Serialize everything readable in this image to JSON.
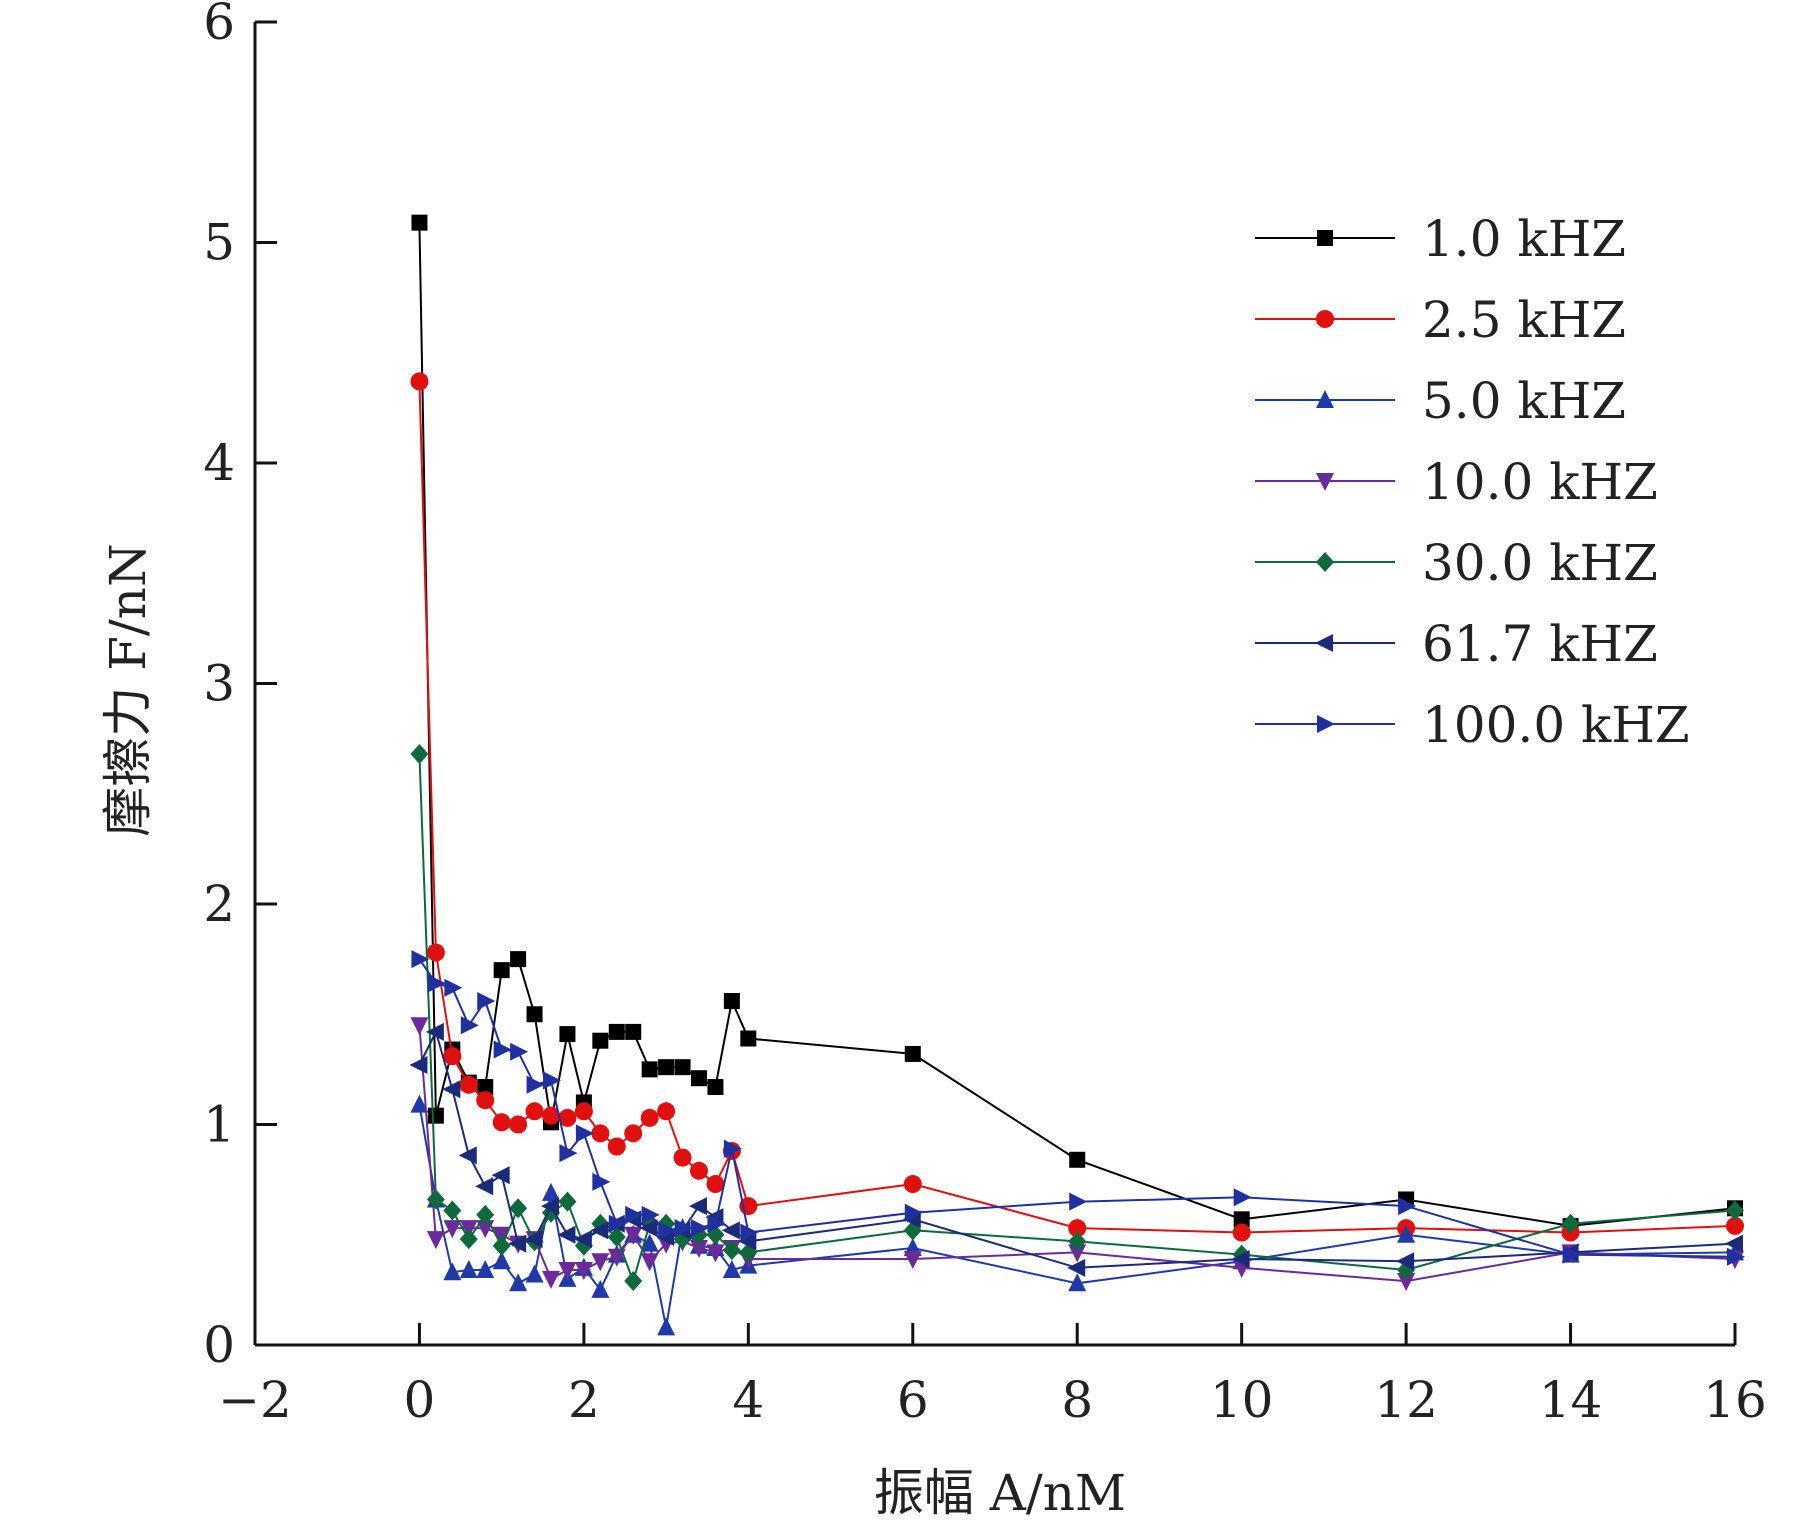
{
  "chart_data": {
    "type": "line",
    "xlabel": "振幅 A/nM",
    "ylabel": "摩擦力 F/nN",
    "xlim": [
      -2,
      16
    ],
    "ylim": [
      0,
      6
    ],
    "xticks": [
      -2,
      0,
      2,
      4,
      6,
      8,
      10,
      12,
      14,
      16
    ],
    "xtick_labels": [
      "−2",
      "0",
      "2",
      "4",
      "6",
      "8",
      "10",
      "12",
      "14",
      "16"
    ],
    "yticks": [
      0,
      1,
      2,
      3,
      4,
      5,
      6
    ],
    "ytick_labels": [
      "0",
      "1",
      "2",
      "3",
      "4",
      "5",
      "6"
    ],
    "grid": false,
    "legend_position": "top-right",
    "series": [
      {
        "name": "1.0 kHZ",
        "color": "#000000",
        "marker": "square",
        "points": [
          [
            0,
            5.09
          ],
          [
            0.2,
            1.04
          ],
          [
            0.4,
            1.34
          ],
          [
            0.6,
            1.19
          ],
          [
            0.8,
            1.17
          ],
          [
            1.0,
            1.7
          ],
          [
            1.2,
            1.75
          ],
          [
            1.4,
            1.5
          ],
          [
            1.6,
            1.01
          ],
          [
            1.8,
            1.41
          ],
          [
            2.0,
            1.1
          ],
          [
            2.2,
            1.38
          ],
          [
            2.4,
            1.42
          ],
          [
            2.6,
            1.42
          ],
          [
            2.8,
            1.25
          ],
          [
            3.0,
            1.26
          ],
          [
            3.2,
            1.26
          ],
          [
            3.4,
            1.21
          ],
          [
            3.6,
            1.17
          ],
          [
            3.8,
            1.56
          ],
          [
            4.0,
            1.39
          ],
          [
            6.0,
            1.32
          ],
          [
            8.0,
            0.84
          ],
          [
            10.0,
            0.57
          ],
          [
            12.0,
            0.66
          ],
          [
            14.0,
            0.54
          ],
          [
            16.0,
            0.62
          ]
        ]
      },
      {
        "name": "2.5 kHZ",
        "color": "#e01010",
        "marker": "circle",
        "points": [
          [
            0,
            4.37
          ],
          [
            0.2,
            1.78
          ],
          [
            0.4,
            1.31
          ],
          [
            0.6,
            1.18
          ],
          [
            0.8,
            1.11
          ],
          [
            1.0,
            1.01
          ],
          [
            1.2,
            1.0
          ],
          [
            1.4,
            1.06
          ],
          [
            1.6,
            1.04
          ],
          [
            1.8,
            1.03
          ],
          [
            2.0,
            1.06
          ],
          [
            2.2,
            0.96
          ],
          [
            2.4,
            0.9
          ],
          [
            2.6,
            0.96
          ],
          [
            2.8,
            1.03
          ],
          [
            3.0,
            1.06
          ],
          [
            3.2,
            0.85
          ],
          [
            3.4,
            0.79
          ],
          [
            3.6,
            0.73
          ],
          [
            3.8,
            0.88
          ],
          [
            4.0,
            0.63
          ],
          [
            6.0,
            0.73
          ],
          [
            8.0,
            0.53
          ],
          [
            10.0,
            0.51
          ],
          [
            12.0,
            0.53
          ],
          [
            14.0,
            0.51
          ],
          [
            16.0,
            0.54
          ]
        ]
      },
      {
        "name": "5.0 kHZ",
        "color": "#1f3aa8",
        "marker": "triangle-up",
        "points": [
          [
            0,
            1.09
          ],
          [
            0.2,
            0.66
          ],
          [
            0.4,
            0.33
          ],
          [
            0.6,
            0.34
          ],
          [
            0.8,
            0.34
          ],
          [
            1.0,
            0.38
          ],
          [
            1.2,
            0.28
          ],
          [
            1.4,
            0.32
          ],
          [
            1.6,
            0.69
          ],
          [
            1.8,
            0.3
          ],
          [
            2.0,
            0.35
          ],
          [
            2.2,
            0.25
          ],
          [
            2.4,
            0.41
          ],
          [
            2.6,
            0.5
          ],
          [
            2.8,
            0.46
          ],
          [
            3.0,
            0.08
          ],
          [
            3.2,
            0.53
          ],
          [
            3.4,
            0.45
          ],
          [
            3.6,
            0.44
          ],
          [
            3.8,
            0.34
          ],
          [
            4.0,
            0.36
          ],
          [
            6.0,
            0.44
          ],
          [
            8.0,
            0.28
          ],
          [
            10.0,
            0.38
          ],
          [
            12.0,
            0.5
          ],
          [
            14.0,
            0.41
          ],
          [
            16.0,
            0.42
          ]
        ]
      },
      {
        "name": "10.0 kHZ",
        "color": "#6a2a9a",
        "marker": "triangle-down",
        "points": [
          [
            0,
            1.45
          ],
          [
            0.2,
            0.48
          ],
          [
            0.4,
            0.53
          ],
          [
            0.6,
            0.53
          ],
          [
            0.8,
            0.53
          ],
          [
            1.0,
            0.5
          ],
          [
            1.2,
            0.46
          ],
          [
            1.4,
            0.48
          ],
          [
            1.6,
            0.3
          ],
          [
            1.8,
            0.34
          ],
          [
            2.0,
            0.34
          ],
          [
            2.2,
            0.38
          ],
          [
            2.4,
            0.4
          ],
          [
            2.6,
            0.5
          ],
          [
            2.8,
            0.38
          ],
          [
            3.0,
            0.46
          ],
          [
            3.2,
            0.47
          ],
          [
            3.4,
            0.44
          ],
          [
            3.6,
            0.42
          ],
          [
            3.8,
            0.44
          ],
          [
            4.0,
            0.39
          ],
          [
            6.0,
            0.39
          ],
          [
            8.0,
            0.42
          ],
          [
            10.0,
            0.35
          ],
          [
            12.0,
            0.29
          ],
          [
            14.0,
            0.42
          ],
          [
            16.0,
            0.39
          ]
        ]
      },
      {
        "name": "30.0 kHZ",
        "color": "#0e6a3a",
        "marker": "diamond",
        "points": [
          [
            0,
            2.68
          ],
          [
            0.2,
            0.66
          ],
          [
            0.4,
            0.61
          ],
          [
            0.6,
            0.48
          ],
          [
            0.8,
            0.59
          ],
          [
            1.0,
            0.45
          ],
          [
            1.2,
            0.62
          ],
          [
            1.4,
            0.47
          ],
          [
            1.6,
            0.6
          ],
          [
            1.8,
            0.65
          ],
          [
            2.0,
            0.45
          ],
          [
            2.2,
            0.55
          ],
          [
            2.4,
            0.49
          ],
          [
            2.6,
            0.29
          ],
          [
            2.8,
            0.55
          ],
          [
            3.0,
            0.55
          ],
          [
            3.2,
            0.48
          ],
          [
            3.4,
            0.5
          ],
          [
            3.6,
            0.5
          ],
          [
            3.8,
            0.43
          ],
          [
            4.0,
            0.42
          ],
          [
            6.0,
            0.52
          ],
          [
            8.0,
            0.47
          ],
          [
            10.0,
            0.41
          ],
          [
            12.0,
            0.34
          ],
          [
            14.0,
            0.55
          ],
          [
            16.0,
            0.61
          ]
        ]
      },
      {
        "name": "61.7 kHZ",
        "color": "#1c2a7a",
        "marker": "triangle-left",
        "points": [
          [
            0,
            1.27
          ],
          [
            0.2,
            1.42
          ],
          [
            0.4,
            1.16
          ],
          [
            0.6,
            0.86
          ],
          [
            0.8,
            0.72
          ],
          [
            1.0,
            0.77
          ],
          [
            1.2,
            0.46
          ],
          [
            1.4,
            0.48
          ],
          [
            1.6,
            0.63
          ],
          [
            1.8,
            0.5
          ],
          [
            2.0,
            0.48
          ],
          [
            2.2,
            0.52
          ],
          [
            2.4,
            0.55
          ],
          [
            2.6,
            0.57
          ],
          [
            2.8,
            0.53
          ],
          [
            3.0,
            0.49
          ],
          [
            3.2,
            0.52
          ],
          [
            3.4,
            0.63
          ],
          [
            3.6,
            0.58
          ],
          [
            3.8,
            0.52
          ],
          [
            4.0,
            0.47
          ],
          [
            6.0,
            0.57
          ],
          [
            8.0,
            0.35
          ],
          [
            10.0,
            0.39
          ],
          [
            12.0,
            0.38
          ],
          [
            14.0,
            0.42
          ],
          [
            16.0,
            0.46
          ]
        ]
      },
      {
        "name": "100.0 kHZ",
        "color": "#2030a0",
        "marker": "triangle-right",
        "points": [
          [
            0,
            1.75
          ],
          [
            0.2,
            1.64
          ],
          [
            0.4,
            1.62
          ],
          [
            0.6,
            1.45
          ],
          [
            0.8,
            1.56
          ],
          [
            1.0,
            1.34
          ],
          [
            1.2,
            1.33
          ],
          [
            1.4,
            1.18
          ],
          [
            1.6,
            1.2
          ],
          [
            1.8,
            0.87
          ],
          [
            2.0,
            0.96
          ],
          [
            2.2,
            0.74
          ],
          [
            2.4,
            0.55
          ],
          [
            2.6,
            0.59
          ],
          [
            2.8,
            0.59
          ],
          [
            3.0,
            0.52
          ],
          [
            3.2,
            0.53
          ],
          [
            3.4,
            0.53
          ],
          [
            3.6,
            0.55
          ],
          [
            3.8,
            0.89
          ],
          [
            4.0,
            0.51
          ],
          [
            6.0,
            0.6
          ],
          [
            8.0,
            0.65
          ],
          [
            10.0,
            0.67
          ],
          [
            12.0,
            0.63
          ],
          [
            14.0,
            0.41
          ],
          [
            16.0,
            0.4
          ]
        ]
      }
    ]
  }
}
